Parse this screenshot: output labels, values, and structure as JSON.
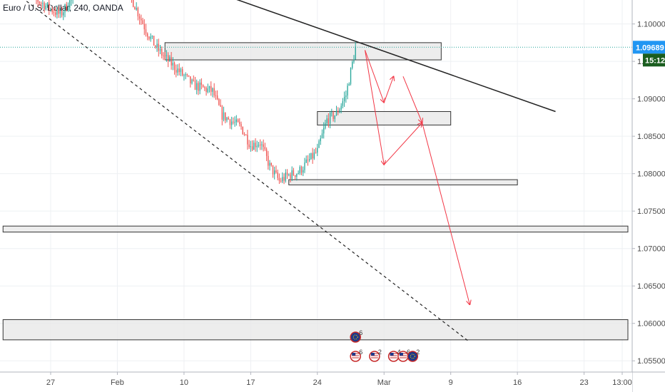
{
  "header": {
    "title": "Euro / U.S. Dollar, 240, OANDA"
  },
  "colors": {
    "up": "#26a69a",
    "down": "#ef5350",
    "grid": "#eef0f3",
    "price_tag": "#2196f3",
    "countdown_tag": "#1b5e20",
    "zone_fill": "#e9e9e9",
    "zone_stroke": "#333333",
    "trendline": "#222222",
    "forecast_arrows": "#f23645"
  },
  "price_tag": {
    "price": "1.09689",
    "countdown": "15:12"
  },
  "events": {
    "upper": {
      "icon": "flag-eu-icon",
      "count": "6"
    },
    "lower": [
      {
        "icon": "flag-us-icon",
        "count": "6"
      },
      {
        "icon": "flag-us-icon",
        "count": "2"
      },
      {
        "icon": "flag-us-icon",
        "count": "4"
      },
      {
        "icon": "flag-us-icon",
        "count": "6"
      },
      {
        "icon": "flag-eu-icon",
        "count": "2"
      }
    ]
  },
  "chart_data": {
    "type": "candlestick",
    "title": "Euro / U.S. Dollar, 240, OANDA",
    "grid": true,
    "y_ticks": [
      "1.10000",
      "1.09500",
      "1.09000",
      "1.08500",
      "1.08000",
      "1.07500",
      "1.07000",
      "1.06500",
      "1.06000",
      "1.05500"
    ],
    "x_ticks": [
      "27",
      "Feb",
      "10",
      "17",
      "24",
      "Mar",
      "9",
      "16",
      "23",
      "13:00"
    ],
    "ylim": [
      1.0535,
      1.1032
    ],
    "last_price": 1.09689,
    "price_path": [
      [
        "2020-01-24",
        1.1045
      ],
      [
        "2020-01-28",
        1.1012
      ],
      [
        "2020-01-31",
        1.1065
      ],
      [
        "2020-02-04",
        1.1048
      ],
      [
        "2020-02-06",
        1.0992
      ],
      [
        "2020-02-07",
        1.097
      ],
      [
        "2020-02-08",
        1.0955
      ],
      [
        "2020-02-11",
        1.0918
      ],
      [
        "2020-02-13",
        1.091
      ],
      [
        "2020-02-14",
        1.0878
      ],
      [
        "2020-02-16",
        1.0862
      ],
      [
        "2020-02-17",
        1.0838
      ],
      [
        "2020-02-18",
        1.0842
      ],
      [
        "2020-02-19",
        1.081
      ],
      [
        "2020-02-20",
        1.079
      ],
      [
        "2020-02-21",
        1.0798
      ],
      [
        "2020-02-22",
        1.0802
      ],
      [
        "2020-02-24",
        1.083
      ],
      [
        "2020-02-25",
        1.0872
      ],
      [
        "2020-02-26",
        1.088
      ],
      [
        "2020-02-27",
        1.0905
      ],
      [
        "2020-02-28",
        1.0968
      ]
    ],
    "zones": [
      {
        "start": "2020-02-08",
        "end": "2020-03-08",
        "low": 1.0952,
        "high": 1.0975
      },
      {
        "start": "2020-02-24",
        "end": "2020-03-09",
        "low": 1.0865,
        "high": 1.0883
      },
      {
        "start": "2020-02-21",
        "end": "2020-03-16",
        "low": 1.0785,
        "high": 1.0792
      },
      {
        "start": "2020-01-22",
        "end": "2020-03-30",
        "low": 1.0722,
        "high": 1.073
      },
      {
        "start": "2020-01-22",
        "end": "2020-03-30",
        "low": 1.0578,
        "high": 1.0605
      }
    ],
    "trendlines": [
      {
        "style": "solid",
        "from": [
          "2020-02-15",
          1.1035
        ],
        "to": [
          "2020-03-20",
          1.0883
        ]
      },
      {
        "style": "dashed",
        "from": [
          "2020-01-24",
          1.1035
        ],
        "to": [
          "2020-03-11",
          1.0575
        ]
      }
    ],
    "forecast_arrows": [
      {
        "from": [
          "2020-02-29",
          1.0965
        ],
        "to": [
          "2020-03-02",
          1.0895
        ]
      },
      {
        "from": [
          "2020-03-02",
          1.0895
        ],
        "to": [
          "2020-03-03",
          1.093
        ]
      },
      {
        "from": [
          "2020-03-04",
          1.093
        ],
        "to": [
          "2020-03-06",
          1.0868
        ]
      },
      {
        "from": [
          "2020-02-29",
          1.0965
        ],
        "to": [
          "2020-03-02",
          1.0812
        ]
      },
      {
        "from": [
          "2020-03-02",
          1.0812
        ],
        "to": [
          "2020-03-06",
          1.0868
        ]
      },
      {
        "from": [
          "2020-03-06",
          1.0868
        ],
        "to": [
          "2020-03-11",
          1.0625
        ]
      }
    ]
  }
}
